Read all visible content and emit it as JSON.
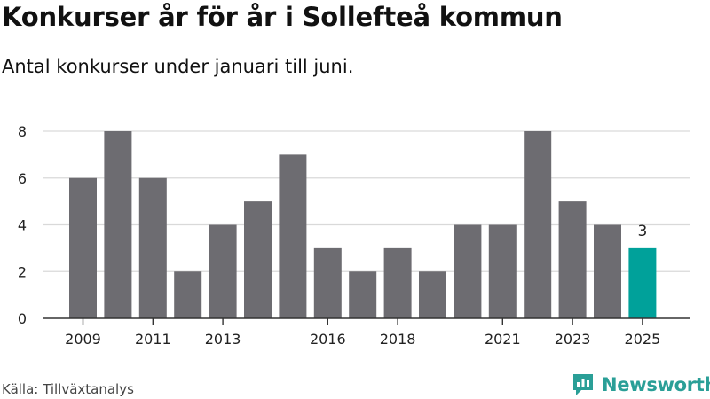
{
  "header": {
    "title": "Konkurser år för år i Sollefteå kommun",
    "subtitle": "Antal konkurser under januari till juni."
  },
  "footer": {
    "source": "Källa: Tillväxtanalys",
    "brand": "Newsworthy"
  },
  "colors": {
    "bar": "#6d6c71",
    "highlight": "#00a19a",
    "grid": "#d9d9d9",
    "axis": "#333333",
    "brand": "#2a9f97"
  },
  "chart_data": {
    "type": "bar",
    "title": "Konkurser år för år i Sollefteå kommun",
    "subtitle": "Antal konkurser under januari till juni.",
    "categories": [
      "2009",
      "2010",
      "2011",
      "2012",
      "2013",
      "2014",
      "2015",
      "2016",
      "2017",
      "2018",
      "2019",
      "2020",
      "2021",
      "2022",
      "2023",
      "2024",
      "2025"
    ],
    "values": [
      6,
      8,
      6,
      2,
      4,
      5,
      7,
      3,
      2,
      3,
      2,
      4,
      4,
      8,
      5,
      4,
      3
    ],
    "x_tick_labels": [
      "2009",
      "2011",
      "2013",
      "2016",
      "2018",
      "2021",
      "2023",
      "2025"
    ],
    "y_ticks": [
      "0",
      "2",
      "4",
      "6",
      "8"
    ],
    "ylim": [
      0,
      8
    ],
    "grid": true,
    "highlight": {
      "category": "2025",
      "label": "3"
    },
    "xlabel": "",
    "ylabel": ""
  }
}
